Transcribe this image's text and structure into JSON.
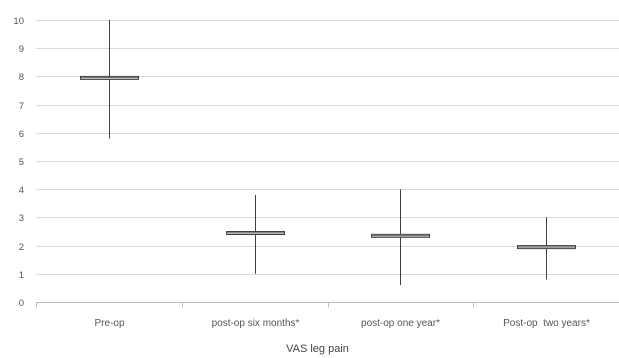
{
  "chart_data": {
    "type": "box",
    "xlabel": "VAS leg pain",
    "ylabel": "",
    "title": "",
    "ylim": [
      0,
      10
    ],
    "yticks": [
      0,
      1,
      2,
      3,
      4,
      5,
      6,
      7,
      8,
      9,
      10
    ],
    "grid": true,
    "categories": [
      "Pre-op",
      "post-op six months*",
      "post-op one year*",
      "Post-op  two years*"
    ],
    "series": [
      {
        "values": [
          {
            "min": 5.8,
            "q1": 7.9,
            "median": 7.95,
            "q3": 8.0,
            "max": 10.0
          },
          {
            "min": 1.0,
            "q1": 2.4,
            "median": 2.45,
            "q3": 2.5,
            "max": 3.8
          },
          {
            "min": 0.6,
            "q1": 2.3,
            "median": 2.35,
            "q3": 2.4,
            "max": 4.0
          },
          {
            "min": 0.8,
            "q1": 1.9,
            "median": 1.95,
            "q3": 2.0,
            "max": 3.0
          }
        ]
      }
    ],
    "colors": {
      "grid": "#d9d9d9",
      "axis": "#bfbfbf",
      "whisker": "#404040",
      "box_stroke": "#404040",
      "box_fill": "#ffffff"
    }
  }
}
